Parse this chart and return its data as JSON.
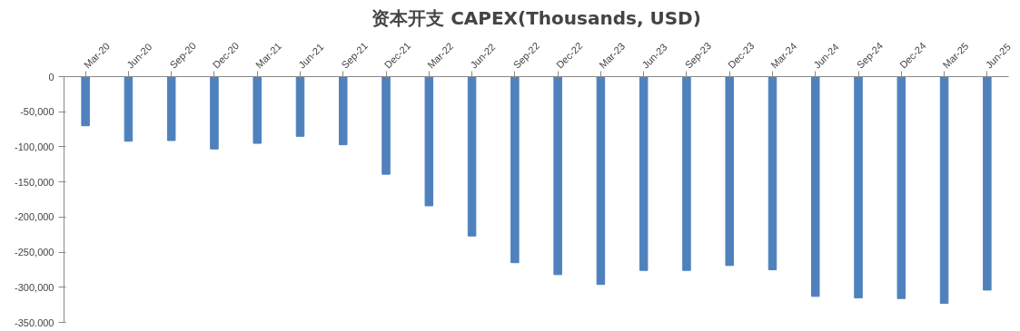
{
  "chart_data": {
    "type": "bar",
    "title": "资本开支 CAPEX(Thousands, USD)",
    "categories": [
      "Mar-20",
      "Jun-20",
      "Sep-20",
      "Dec-20",
      "Mar-21",
      "Jun-21",
      "Sep-21",
      "Dec-21",
      "Mar-22",
      "Jun-22",
      "Sep-22",
      "Dec-22",
      "Mar-23",
      "Jun-23",
      "Sep-23",
      "Dec-23",
      "Mar-24",
      "Jun-24",
      "Sep-24",
      "Dec-24",
      "Mar-25",
      "Jun-25"
    ],
    "values": [
      -70000,
      -92000,
      -91000,
      -103000,
      -95000,
      -85000,
      -97000,
      -139000,
      -184000,
      -227000,
      -265000,
      -282000,
      -296000,
      -276000,
      -276000,
      -269000,
      -275000,
      -313000,
      -315000,
      -316000,
      -323000,
      -304000
    ],
    "color": "#4f81bd",
    "ylim": [
      -350000,
      0
    ],
    "yticks": [
      {
        "value": -350000,
        "label": "-350,000"
      },
      {
        "value": -300000,
        "label": "-300,000"
      },
      {
        "value": -250000,
        "label": "-250,000"
      },
      {
        "value": -200000,
        "label": "-200,000"
      },
      {
        "value": -150000,
        "label": "-150,000"
      },
      {
        "value": -100000,
        "label": "-100,000"
      },
      {
        "value": -50000,
        "label": "-50,000"
      },
      0
    ],
    "grid": false
  }
}
